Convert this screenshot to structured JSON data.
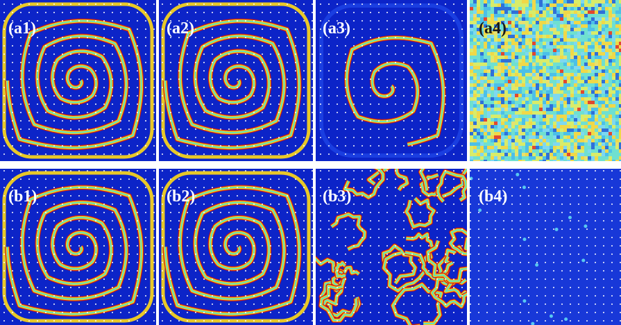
{
  "panels": [
    {
      "label": "(a1)"
    },
    {
      "label": "(a2)"
    },
    {
      "label": "(a3)"
    },
    {
      "label": "(a4)"
    },
    {
      "label": "(b1)"
    },
    {
      "label": "(b2)"
    },
    {
      "label": "(b3)"
    },
    {
      "label": "(b4)"
    }
  ]
}
